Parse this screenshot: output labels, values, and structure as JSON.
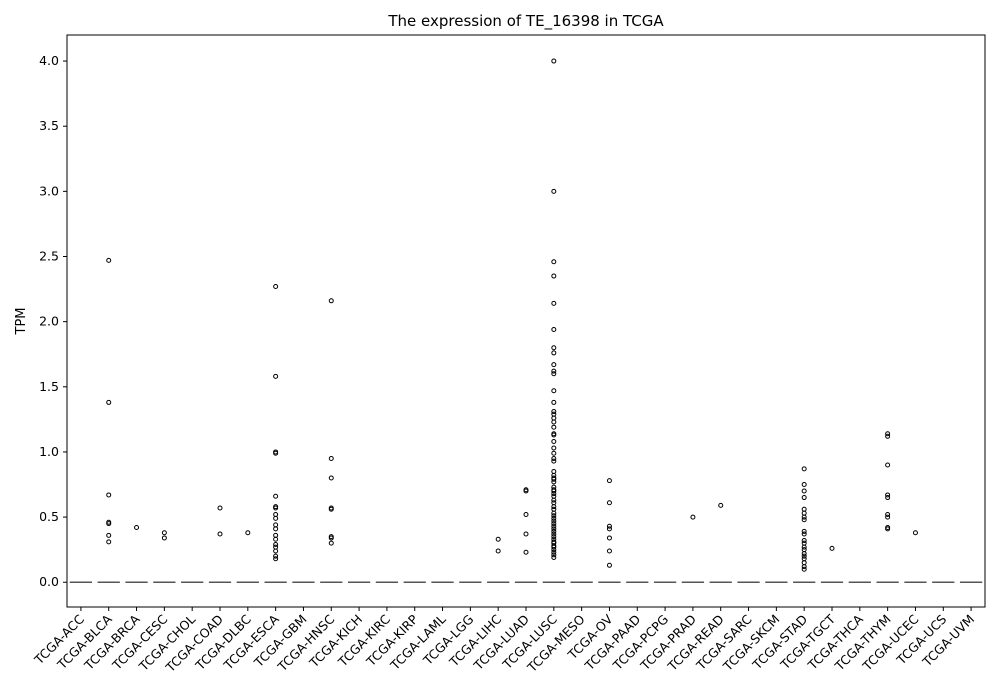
{
  "chart_data": {
    "type": "box",
    "title": "The expression of TE_16398 in TCGA",
    "xlabel": "",
    "ylabel": "TPM",
    "ylim": [
      -0.19,
      4.2
    ],
    "yticks": [
      0.0,
      0.5,
      1.0,
      1.5,
      2.0,
      2.5,
      3.0,
      3.5,
      4.0
    ],
    "ytick_labels": [
      "0.0",
      "0.5",
      "1.0",
      "1.5",
      "2.0",
      "2.5",
      "3.0",
      "3.5",
      "4.0"
    ],
    "grid": false,
    "legend": "none",
    "categories": [
      "TCGA-ACC",
      "TCGA-BLCA",
      "TCGA-BRCA",
      "TCGA-CESC",
      "TCGA-CHOL",
      "TCGA-COAD",
      "TCGA-DLBC",
      "TCGA-ESCA",
      "TCGA-GBM",
      "TCGA-HNSC",
      "TCGA-KICH",
      "TCGA-KIRC",
      "TCGA-KIRP",
      "TCGA-LAML",
      "TCGA-LGG",
      "TCGA-LIHC",
      "TCGA-LUAD",
      "TCGA-LUSC",
      "TCGA-MESO",
      "TCGA-OV",
      "TCGA-PAAD",
      "TCGA-PCPG",
      "TCGA-PRAD",
      "TCGA-READ",
      "TCGA-SARC",
      "TCGA-SKCM",
      "TCGA-STAD",
      "TCGA-TGCT",
      "TCGA-THCA",
      "TCGA-THYM",
      "TCGA-UCEC",
      "TCGA-UCS",
      "TCGA-UVM"
    ],
    "median": [
      0,
      0,
      0,
      0,
      0,
      0,
      0,
      0,
      0,
      0,
      0,
      0,
      0,
      0,
      0,
      0,
      0,
      0,
      0,
      0,
      0,
      0,
      0,
      0,
      0,
      0,
      0,
      0,
      0,
      0,
      0,
      0,
      0
    ],
    "outliers": [
      [],
      [
        2.47,
        1.38,
        0.67,
        0.46,
        0.45,
        0.36,
        0.31
      ],
      [
        0.42
      ],
      [
        0.38,
        0.34
      ],
      [],
      [
        0.57,
        0.37
      ],
      [
        0.38
      ],
      [
        2.27,
        1.58,
        1.0,
        0.99,
        0.66,
        0.58,
        0.57,
        0.52,
        0.49,
        0.44,
        0.41,
        0.36,
        0.33,
        0.29,
        0.27,
        0.24,
        0.2,
        0.18
      ],
      [],
      [
        2.16,
        0.95,
        0.8,
        0.57,
        0.56,
        0.35,
        0.34,
        0.3
      ],
      [],
      [],
      [],
      [],
      [],
      [
        0.33,
        0.24
      ],
      [
        0.71,
        0.7,
        0.52,
        0.37,
        0.23
      ],
      [
        4.0,
        3.0,
        2.46,
        2.35,
        2.14,
        1.94,
        1.8,
        1.76,
        1.67,
        1.62,
        1.6,
        1.47,
        1.38,
        1.31,
        1.29,
        1.26,
        1.23,
        1.19,
        1.14,
        1.13,
        1.08,
        1.03,
        0.99,
        0.95,
        0.93,
        0.85,
        0.82,
        0.8,
        0.79,
        0.77,
        0.73,
        0.71,
        0.7,
        0.68,
        0.66,
        0.63,
        0.61,
        0.58,
        0.56,
        0.53,
        0.51,
        0.49,
        0.47,
        0.45,
        0.43,
        0.41,
        0.39,
        0.37,
        0.35,
        0.33,
        0.31,
        0.3,
        0.28,
        0.27,
        0.25,
        0.23,
        0.21,
        0.19
      ],
      [],
      [
        0.78,
        0.61,
        0.43,
        0.41,
        0.34,
        0.24,
        0.13
      ],
      [],
      [],
      [
        0.5
      ],
      [
        0.59
      ],
      [],
      [],
      [
        0.87,
        0.75,
        0.7,
        0.65,
        0.56,
        0.53,
        0.5,
        0.48,
        0.39,
        0.37,
        0.32,
        0.3,
        0.27,
        0.25,
        0.22,
        0.2,
        0.18,
        0.15,
        0.12,
        0.1
      ],
      [
        0.26
      ],
      [],
      [
        1.14,
        1.12,
        0.9,
        0.67,
        0.65,
        0.52,
        0.5,
        0.42,
        0.41
      ],
      [
        0.38
      ],
      [],
      []
    ],
    "colors": {
      "frame": "#000000",
      "median": "#555555",
      "outlier": "#000000"
    }
  }
}
